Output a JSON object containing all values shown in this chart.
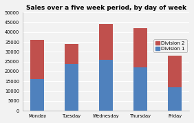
{
  "categories": [
    "Monday",
    "Tuesday",
    "Wednesday",
    "Thursday",
    "Friday"
  ],
  "division1": [
    16000,
    24000,
    26000,
    22000,
    12000
  ],
  "division2": [
    20000,
    10000,
    18000,
    20000,
    16000
  ],
  "div1_color": "#4F81BD",
  "div2_color": "#C0504D",
  "title": "Sales over a five week period, by day of week",
  "ylim": [
    0,
    50000
  ],
  "yticks": [
    0,
    5000,
    10000,
    15000,
    20000,
    25000,
    30000,
    35000,
    40000,
    45000,
    50000
  ],
  "background_color": "#F2F2F2",
  "plot_bg_color": "#F2F2F2",
  "grid_color": "#FFFFFF",
  "title_fontsize": 6.5,
  "tick_fontsize": 4.8,
  "legend_fontsize": 5.0,
  "bar_width": 0.4
}
